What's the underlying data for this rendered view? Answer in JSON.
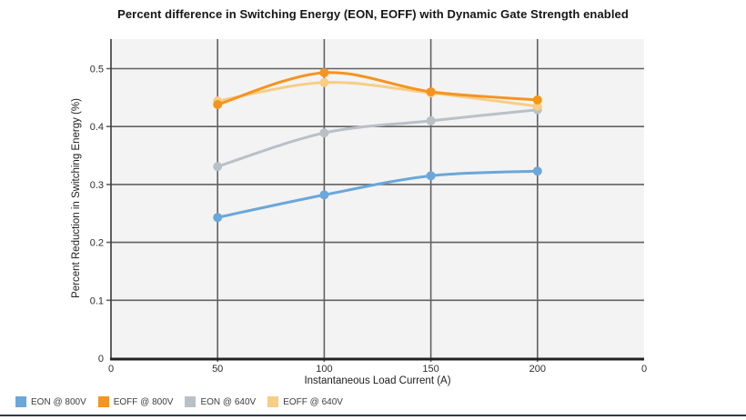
{
  "chart": {
    "title": "Percent difference in Switching Energy (EON, EOFF) with Dynamic Gate Strength enabled",
    "x_axis": {
      "title": "Instantaneous Load Current (A)",
      "ticks": [
        "0",
        "50",
        "100",
        "150",
        "200",
        "0"
      ]
    },
    "y_axis": {
      "title": "Percent Reduction in Switching Energy (%)",
      "ticks": [
        "0",
        "0.1",
        "0.2",
        "0.3",
        "0.4",
        "0.5"
      ]
    },
    "colors": {
      "plot_background": "#f3f3f3",
      "gridline": "#616161",
      "axis_line": "#222222",
      "bottom_rule": "#303a44"
    }
  },
  "chart_data": {
    "type": "line",
    "title": "Percent difference in Switching Energy (EON, EOFF) with Dynamic Gate Strength enabled",
    "xlabel": "Instantaneous Load Current (A)",
    "ylabel": "Percent Reduction in Switching Energy (%)",
    "x": [
      50,
      100,
      150,
      200
    ],
    "x_ticks": [
      "0",
      "50",
      "100",
      "150",
      "200",
      "0"
    ],
    "ylim": [
      0,
      0.5
    ],
    "y_ticks": [
      0,
      0.1,
      0.2,
      0.3,
      0.4,
      0.5
    ],
    "grid": true,
    "smooth": true,
    "legend_position": "bottom-left",
    "series": [
      {
        "name": "EON @ 800V",
        "color": "#6aa7da",
        "values": [
          0.243,
          0.282,
          0.315,
          0.323
        ]
      },
      {
        "name": "EOFF @ 800V",
        "color": "#f5941f",
        "values": [
          0.438,
          0.493,
          0.46,
          0.446
        ]
      },
      {
        "name": "EON @ 640V",
        "color": "#b9c0c8",
        "values": [
          0.331,
          0.389,
          0.41,
          0.429
        ]
      },
      {
        "name": "EOFF @ 640V",
        "color": "#f8cd85",
        "values": [
          0.444,
          0.476,
          0.458,
          0.435
        ]
      }
    ]
  }
}
